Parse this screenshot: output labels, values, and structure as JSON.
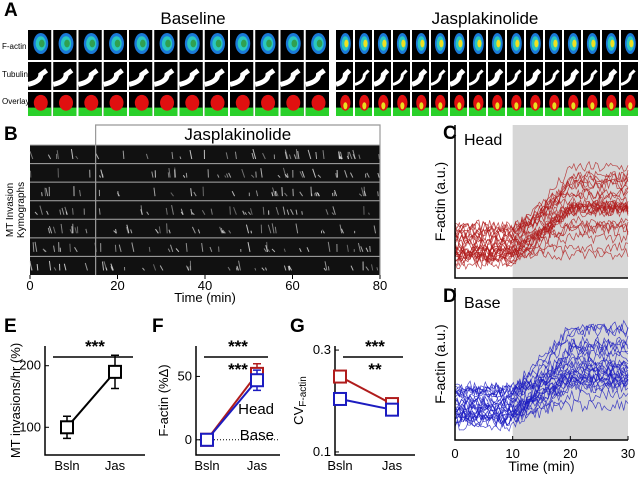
{
  "panel_a": {
    "label": "A",
    "conditions": [
      "Baseline",
      "Jasplakinolide"
    ],
    "rows": [
      "F-actin",
      "Tubulin",
      "Overlay"
    ]
  },
  "chart_data": [
    {
      "label": "B",
      "type": "kymograph",
      "annotation": "Jasplakinolide",
      "treatment_start": 15,
      "xlim": [
        0,
        80
      ],
      "xticks": [
        0,
        20,
        40,
        60,
        80
      ],
      "xlabel": "Time (min)",
      "ylabel": [
        "MT Invasion",
        "Kymographs"
      ]
    },
    {
      "label": "C",
      "type": "traces",
      "series_label": "Head",
      "color": "#b01c1c",
      "treatment_start": 10,
      "xlim": [
        0,
        30
      ],
      "ylabel": "F-actin (a.u.)"
    },
    {
      "label": "D",
      "type": "traces",
      "series_label": "Base",
      "color": "#1c1cc0",
      "treatment_start": 10,
      "xlim": [
        0,
        30
      ],
      "xticks": [
        0,
        10,
        20,
        30
      ],
      "xlabel": "Time (min)",
      "ylabel": "F-actin (a.u.)"
    },
    {
      "label": "E",
      "type": "line",
      "categories": [
        "Bsln",
        "Jas"
      ],
      "ylabel": "MT invasions/hr (%)",
      "ylim": [
        55,
        232
      ],
      "yticks": [
        100,
        200
      ],
      "series": [
        {
          "color": "#000000",
          "values": [
            100,
            190
          ],
          "errors": [
            18,
            27
          ]
        }
      ],
      "significance": [
        {
          "text": "***",
          "color": "#000000"
        }
      ]
    },
    {
      "label": "F",
      "type": "line",
      "categories": [
        "Bsln",
        "Jas"
      ],
      "ylabel": "F-actin (%Δ)",
      "ylim": [
        -12,
        74
      ],
      "yticks": [
        0,
        50
      ],
      "zero_line": 0,
      "series": [
        {
          "name": "Head",
          "color": "#b01c1c",
          "values": [
            0,
            52
          ],
          "errors": [
            2,
            8
          ]
        },
        {
          "name": "Base",
          "color": "#1c1cc0",
          "values": [
            0,
            47
          ],
          "errors": [
            2,
            8
          ]
        }
      ],
      "significance": [
        {
          "text": "***",
          "color": "#b01c1c"
        },
        {
          "text": "***",
          "color": "#1c1cc0"
        }
      ]
    },
    {
      "label": "G",
      "type": "line",
      "categories": [
        "Bsln",
        "Jas"
      ],
      "ylabel": "CV",
      "ylabel_sub": "F-actin",
      "ylim": [
        0.094,
        0.308
      ],
      "yticks": [
        0.1,
        0.3
      ],
      "series": [
        {
          "color": "#b01c1c",
          "values": [
            0.248,
            0.194
          ]
        },
        {
          "color": "#1c1cc0",
          "values": [
            0.204,
            0.183
          ]
        }
      ],
      "significance": [
        {
          "text": "***",
          "color": "#b01c1c"
        },
        {
          "text": "**",
          "color": "#1c1cc0"
        }
      ]
    }
  ]
}
